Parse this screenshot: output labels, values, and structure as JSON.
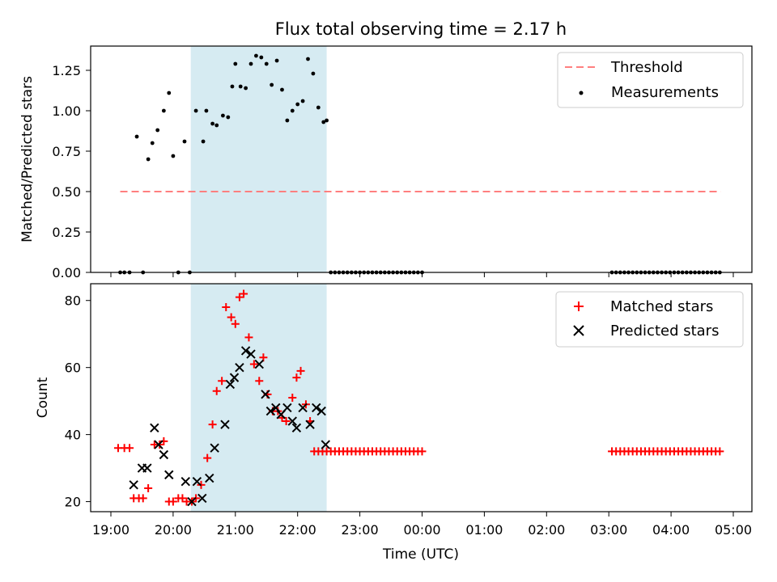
{
  "title": "Flux total observing time = 2.17 h",
  "colors": {
    "threshold": "#ff7f7f",
    "measurement": "#000000",
    "matched": "#ff0000",
    "predicted": "#000000",
    "shade": "#add8e6"
  },
  "chart_data": [
    {
      "type": "scatter",
      "ylabel": "Matched/Predicted stars",
      "ylim": [
        0,
        1.4
      ],
      "xlim": [
        "19:00",
        "05:00"
      ],
      "y_ticks": [
        0.0,
        0.25,
        0.5,
        0.75,
        1.0,
        1.25
      ],
      "y_tick_labels": [
        "0.00",
        "0.25",
        "0.50",
        "0.75",
        "1.00",
        "1.25"
      ],
      "legend_position": "top-right",
      "legend": [
        "Threshold",
        "Measurements"
      ],
      "shaded_interval": [
        "20:17",
        "22:28"
      ],
      "threshold": {
        "name": "Threshold",
        "value": 0.5,
        "x_start": "19:09",
        "x_end": "04:48"
      },
      "series": [
        {
          "name": "Measurements",
          "x": [
            "19:09",
            "19:13",
            "19:18",
            "19:25",
            "19:31",
            "19:36",
            "19:40",
            "19:45",
            "19:51",
            "19:56",
            "20:00",
            "20:05",
            "20:11",
            "20:16",
            "20:22",
            "20:29",
            "20:32",
            "20:38",
            "20:42",
            "20:48",
            "20:53",
            "20:57",
            "21:00",
            "21:05",
            "21:10",
            "21:15",
            "21:20",
            "21:25",
            "21:30",
            "21:35",
            "21:40",
            "21:45",
            "21:50",
            "21:55",
            "22:00",
            "22:05",
            "22:10",
            "22:15",
            "22:20",
            "22:25",
            "22:28",
            "22:32",
            "22:36",
            "22:40",
            "22:44",
            "22:48",
            "22:52",
            "22:56",
            "23:00",
            "23:04",
            "23:08",
            "23:12",
            "23:16",
            "23:20",
            "23:24",
            "23:28",
            "23:32",
            "23:36",
            "23:40",
            "23:44",
            "23:48",
            "23:52",
            "23:56",
            "00:00",
            "03:03",
            "03:07",
            "03:11",
            "03:15",
            "03:19",
            "03:23",
            "03:27",
            "03:31",
            "03:35",
            "03:39",
            "03:43",
            "03:47",
            "03:51",
            "03:55",
            "03:59",
            "04:03",
            "04:07",
            "04:11",
            "04:15",
            "04:19",
            "04:23",
            "04:27",
            "04:31",
            "04:35",
            "04:39",
            "04:43",
            "04:47"
          ],
          "y": [
            0,
            0,
            0,
            0.84,
            0,
            0.7,
            0.8,
            0.88,
            1.0,
            1.11,
            0.72,
            0,
            0.81,
            0,
            1.0,
            0.81,
            1.0,
            0.92,
            0.91,
            0.97,
            0.96,
            1.15,
            1.29,
            1.15,
            1.14,
            1.29,
            1.34,
            1.33,
            1.29,
            1.16,
            1.31,
            1.13,
            0.94,
            1.0,
            1.04,
            1.06,
            1.32,
            1.23,
            1.02,
            0.93,
            0.94,
            0,
            0,
            0,
            0,
            0,
            0,
            0,
            0,
            0,
            0,
            0,
            0,
            0,
            0,
            0,
            0,
            0,
            0,
            0,
            0,
            0,
            0,
            0,
            0,
            0,
            0,
            0,
            0,
            0,
            0,
            0,
            0,
            0,
            0,
            0,
            0,
            0,
            0,
            0,
            0,
            0,
            0,
            0,
            0,
            0,
            0,
            0,
            0,
            0,
            0
          ]
        }
      ]
    },
    {
      "type": "scatter",
      "ylabel": "Count",
      "xlabel": "Time (UTC)",
      "ylim": [
        17,
        85
      ],
      "y_ticks": [
        20,
        40,
        60,
        80
      ],
      "x_ticks": [
        "19:00",
        "20:00",
        "21:00",
        "22:00",
        "23:00",
        "00:00",
        "01:00",
        "02:00",
        "03:00",
        "04:00",
        "05:00"
      ],
      "legend_position": "top-right",
      "legend": [
        "Matched stars",
        "Predicted stars"
      ],
      "shaded_interval": [
        "20:17",
        "22:28"
      ],
      "series": [
        {
          "name": "Matched stars",
          "x": [
            "19:07",
            "19:13",
            "19:18",
            "19:22",
            "19:27",
            "19:31",
            "19:36",
            "19:42",
            "19:47",
            "19:51",
            "19:56",
            "20:00",
            "20:05",
            "20:09",
            "20:13",
            "20:18",
            "20:22",
            "20:27",
            "20:33",
            "20:38",
            "20:42",
            "20:47",
            "20:51",
            "20:56",
            "21:00",
            "21:04",
            "21:08",
            "21:13",
            "21:18",
            "21:23",
            "21:27",
            "21:31",
            "21:36",
            "21:41",
            "21:45",
            "21:49",
            "21:55",
            "21:59",
            "22:03",
            "22:08",
            "22:12",
            "22:16",
            "22:20",
            "22:24",
            "22:28",
            "22:32",
            "22:36",
            "22:40",
            "22:44",
            "22:48",
            "22:52",
            "22:56",
            "23:00",
            "23:04",
            "23:08",
            "23:12",
            "23:16",
            "23:20",
            "23:24",
            "23:28",
            "23:32",
            "23:36",
            "23:40",
            "23:44",
            "23:48",
            "23:52",
            "23:56",
            "00:00",
            "03:03",
            "03:07",
            "03:11",
            "03:15",
            "03:19",
            "03:23",
            "03:27",
            "03:31",
            "03:35",
            "03:39",
            "03:43",
            "03:47",
            "03:51",
            "03:55",
            "03:59",
            "04:03",
            "04:07",
            "04:11",
            "04:15",
            "04:19",
            "04:23",
            "04:27",
            "04:31",
            "04:35",
            "04:39",
            "04:43",
            "04:47"
          ],
          "y": [
            36,
            36,
            36,
            21,
            21,
            21,
            24,
            37,
            37,
            38,
            20,
            20,
            21,
            21,
            20,
            20,
            21,
            25,
            33,
            43,
            53,
            56,
            78,
            75,
            73,
            81,
            82,
            69,
            61,
            56,
            63,
            52,
            47,
            47,
            45,
            44,
            51,
            57,
            59,
            49,
            44,
            35,
            35,
            35,
            35,
            35,
            35,
            35,
            35,
            35,
            35,
            35,
            35,
            35,
            35,
            35,
            35,
            35,
            35,
            35,
            35,
            35,
            35,
            35,
            35,
            35,
            35,
            35,
            35,
            35,
            35,
            35,
            35,
            35,
            35,
            35,
            35,
            35,
            35,
            35,
            35,
            35,
            35,
            35,
            35,
            35,
            35,
            35,
            35,
            35,
            35,
            35,
            35,
            35,
            35
          ]
        },
        {
          "name": "Predicted stars",
          "x": [
            "19:22",
            "19:30",
            "19:35",
            "19:42",
            "19:46",
            "19:51",
            "19:56",
            "20:12",
            "20:18",
            "20:23",
            "20:28",
            "20:35",
            "20:40",
            "20:50",
            "20:55",
            "20:59",
            "21:04",
            "21:10",
            "21:15",
            "21:23",
            "21:29",
            "21:34",
            "21:39",
            "21:44",
            "21:50",
            "21:55",
            "21:59",
            "22:05",
            "22:12",
            "22:18",
            "22:23",
            "22:27"
          ],
          "y": [
            25,
            30,
            30,
            42,
            37,
            34,
            28,
            26,
            20,
            26,
            21,
            27,
            36,
            43,
            55,
            57,
            60,
            65,
            64,
            61,
            52,
            47,
            48,
            46,
            48,
            44,
            42,
            48,
            43,
            48,
            47,
            37
          ]
        }
      ]
    }
  ]
}
